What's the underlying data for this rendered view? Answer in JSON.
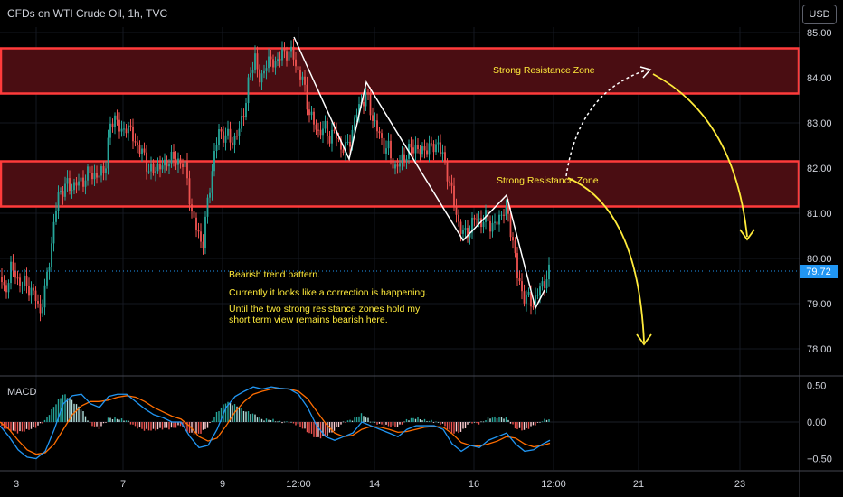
{
  "header": {
    "title": "CFDs on WTI Crude Oil, 1h, TVC",
    "currency_button": "USD"
  },
  "macd_label": "MACD",
  "annotations": {
    "zone_upper": "Strong Resistance Zone",
    "zone_lower": "Strong Resistance Zone",
    "note_line1": "Bearish trend pattern.",
    "note_line2": "Currently it looks like a correction is happening.",
    "note_line3": "Until the two strong resistance zones hold my",
    "note_line4": "short term view remains bearish here."
  },
  "colors": {
    "up": "#26a69a",
    "down": "#ef5350",
    "zone_border": "#ff3b3b",
    "zone_fill": "#4a0d12",
    "annotation": "#ffeb3b",
    "macd_line": "#2196f3",
    "signal_line": "#ff6d00",
    "last_price": "#2196f3"
  },
  "chart_data": {
    "type": "candlestick",
    "title": "CFDs on WTI Crude Oil, 1h, TVC",
    "price_axis": {
      "range": [
        77.5,
        85.2
      ],
      "ticks": [
        "85.00",
        "84.00",
        "83.00",
        "82.00",
        "81.00",
        "80.00",
        "79.00",
        "78.00"
      ]
    },
    "last_price": "79.72",
    "time_axis": {
      "labels": [
        "3",
        "7",
        "9",
        "12:00",
        "14",
        "16",
        "12:00",
        "21",
        "23"
      ]
    },
    "resistance_zones": [
      {
        "low": 83.65,
        "high": 84.65,
        "label": "Strong Resistance Zone"
      },
      {
        "low": 81.15,
        "high": 82.15,
        "label": "Strong Resistance Zone"
      }
    ],
    "price_path": [
      [
        0,
        79.6
      ],
      [
        5,
        79.2
      ],
      [
        12,
        79.8
      ],
      [
        20,
        79.5
      ],
      [
        30,
        79.4
      ],
      [
        38,
        79.2
      ],
      [
        44,
        78.8
      ],
      [
        50,
        79.3
      ],
      [
        56,
        80.2
      ],
      [
        64,
        81.4
      ],
      [
        72,
        81.6
      ],
      [
        80,
        81.6
      ],
      [
        90,
        81.7
      ],
      [
        100,
        81.9
      ],
      [
        108,
        81.8
      ],
      [
        116,
        82.0
      ],
      [
        122,
        82.9
      ],
      [
        128,
        83.2
      ],
      [
        134,
        82.7
      ],
      [
        140,
        83.0
      ],
      [
        146,
        82.7
      ],
      [
        152,
        82.5
      ],
      [
        158,
        82.3
      ],
      [
        164,
        82.0
      ],
      [
        170,
        81.9
      ],
      [
        176,
        82.1
      ],
      [
        182,
        82.0
      ],
      [
        188,
        82.3
      ],
      [
        194,
        82.1
      ],
      [
        200,
        82.2
      ],
      [
        206,
        81.9
      ],
      [
        212,
        81.0
      ],
      [
        218,
        80.6
      ],
      [
        224,
        80.3
      ],
      [
        230,
        81.3
      ],
      [
        236,
        82.2
      ],
      [
        242,
        82.8
      ],
      [
        250,
        82.7
      ],
      [
        258,
        82.6
      ],
      [
        264,
        82.8
      ],
      [
        270,
        83.3
      ],
      [
        276,
        84.0
      ],
      [
        282,
        84.5
      ],
      [
        288,
        83.8
      ],
      [
        294,
        84.4
      ],
      [
        300,
        84.3
      ],
      [
        306,
        84.4
      ],
      [
        312,
        84.5
      ],
      [
        318,
        84.6
      ],
      [
        324,
        84.5
      ],
      [
        328,
        84.2
      ],
      [
        334,
        84.0
      ],
      [
        340,
        83.4
      ],
      [
        346,
        83.0
      ],
      [
        352,
        82.8
      ],
      [
        358,
        82.9
      ],
      [
        364,
        82.7
      ],
      [
        370,
        82.8
      ],
      [
        376,
        82.5
      ],
      [
        382,
        82.4
      ],
      [
        388,
        82.7
      ],
      [
        394,
        83.2
      ],
      [
        400,
        83.5
      ],
      [
        406,
        83.6
      ],
      [
        412,
        83.1
      ],
      [
        418,
        82.8
      ],
      [
        424,
        82.5
      ],
      [
        430,
        82.4
      ],
      [
        436,
        82.0
      ],
      [
        442,
        82.1
      ],
      [
        448,
        82.3
      ],
      [
        454,
        82.4
      ],
      [
        460,
        82.5
      ],
      [
        466,
        82.3
      ],
      [
        472,
        82.5
      ],
      [
        478,
        82.4
      ],
      [
        484,
        82.6
      ],
      [
        490,
        82.2
      ],
      [
        496,
        81.8
      ],
      [
        502,
        81.2
      ],
      [
        508,
        80.7
      ],
      [
        514,
        80.5
      ],
      [
        520,
        80.7
      ],
      [
        526,
        80.9
      ],
      [
        532,
        80.8
      ],
      [
        538,
        80.9
      ],
      [
        544,
        80.7
      ],
      [
        550,
        80.8
      ],
      [
        556,
        81.1
      ],
      [
        562,
        80.9
      ],
      [
        568,
        80.3
      ],
      [
        572,
        79.6
      ],
      [
        578,
        79.2
      ],
      [
        584,
        79.1
      ],
      [
        590,
        79.0
      ],
      [
        596,
        79.3
      ],
      [
        602,
        79.5
      ],
      [
        608,
        79.7
      ]
    ],
    "macd_axis": {
      "range": [
        -0.62,
        0.62
      ],
      "ticks": [
        "0.50",
        "0.00",
        "−0.50"
      ]
    },
    "macd_line": [
      [
        0,
        -0.05
      ],
      [
        10,
        -0.2
      ],
      [
        20,
        -0.38
      ],
      [
        30,
        -0.48
      ],
      [
        40,
        -0.5
      ],
      [
        50,
        -0.4
      ],
      [
        60,
        -0.1
      ],
      [
        70,
        0.25
      ],
      [
        80,
        0.36
      ],
      [
        90,
        0.38
      ],
      [
        100,
        0.25
      ],
      [
        110,
        0.2
      ],
      [
        120,
        0.35
      ],
      [
        130,
        0.38
      ],
      [
        140,
        0.38
      ],
      [
        150,
        0.28
      ],
      [
        160,
        0.18
      ],
      [
        170,
        0.1
      ],
      [
        180,
        0.06
      ],
      [
        190,
        0.0
      ],
      [
        200,
        0.0
      ],
      [
        210,
        -0.2
      ],
      [
        220,
        -0.35
      ],
      [
        230,
        -0.32
      ],
      [
        240,
        -0.1
      ],
      [
        250,
        0.2
      ],
      [
        260,
        0.35
      ],
      [
        270,
        0.42
      ],
      [
        280,
        0.48
      ],
      [
        290,
        0.45
      ],
      [
        300,
        0.48
      ],
      [
        310,
        0.46
      ],
      [
        320,
        0.45
      ],
      [
        330,
        0.38
      ],
      [
        340,
        0.2
      ],
      [
        350,
        -0.05
      ],
      [
        360,
        -0.2
      ],
      [
        370,
        -0.25
      ],
      [
        380,
        -0.2
      ],
      [
        390,
        -0.15
      ],
      [
        400,
        0.0
      ],
      [
        410,
        -0.05
      ],
      [
        420,
        -0.1
      ],
      [
        430,
        -0.15
      ],
      [
        440,
        -0.2
      ],
      [
        450,
        -0.1
      ],
      [
        460,
        -0.05
      ],
      [
        470,
        -0.05
      ],
      [
        480,
        -0.05
      ],
      [
        490,
        -0.1
      ],
      [
        500,
        -0.3
      ],
      [
        510,
        -0.4
      ],
      [
        520,
        -0.32
      ],
      [
        530,
        -0.35
      ],
      [
        540,
        -0.25
      ],
      [
        550,
        -0.2
      ],
      [
        560,
        -0.15
      ],
      [
        570,
        -0.3
      ],
      [
        580,
        -0.4
      ],
      [
        590,
        -0.38
      ],
      [
        600,
        -0.3
      ],
      [
        608,
        -0.25
      ]
    ],
    "signal_line": [
      [
        0,
        0.0
      ],
      [
        10,
        -0.1
      ],
      [
        20,
        -0.25
      ],
      [
        30,
        -0.38
      ],
      [
        40,
        -0.44
      ],
      [
        50,
        -0.42
      ],
      [
        60,
        -0.3
      ],
      [
        70,
        -0.1
      ],
      [
        80,
        0.1
      ],
      [
        90,
        0.22
      ],
      [
        100,
        0.28
      ],
      [
        110,
        0.28
      ],
      [
        120,
        0.3
      ],
      [
        130,
        0.34
      ],
      [
        140,
        0.36
      ],
      [
        150,
        0.34
      ],
      [
        160,
        0.28
      ],
      [
        170,
        0.2
      ],
      [
        180,
        0.14
      ],
      [
        190,
        0.08
      ],
      [
        200,
        0.04
      ],
      [
        210,
        -0.06
      ],
      [
        220,
        -0.2
      ],
      [
        230,
        -0.26
      ],
      [
        240,
        -0.22
      ],
      [
        250,
        -0.05
      ],
      [
        260,
        0.14
      ],
      [
        270,
        0.28
      ],
      [
        280,
        0.38
      ],
      [
        290,
        0.42
      ],
      [
        300,
        0.45
      ],
      [
        310,
        0.46
      ],
      [
        320,
        0.45
      ],
      [
        330,
        0.42
      ],
      [
        340,
        0.32
      ],
      [
        350,
        0.15
      ],
      [
        360,
        -0.02
      ],
      [
        370,
        -0.15
      ],
      [
        380,
        -0.2
      ],
      [
        390,
        -0.18
      ],
      [
        400,
        -0.1
      ],
      [
        410,
        -0.06
      ],
      [
        420,
        -0.07
      ],
      [
        430,
        -0.1
      ],
      [
        440,
        -0.14
      ],
      [
        450,
        -0.13
      ],
      [
        460,
        -0.1
      ],
      [
        470,
        -0.07
      ],
      [
        480,
        -0.06
      ],
      [
        490,
        -0.07
      ],
      [
        500,
        -0.16
      ],
      [
        510,
        -0.28
      ],
      [
        520,
        -0.32
      ],
      [
        530,
        -0.33
      ],
      [
        540,
        -0.3
      ],
      [
        550,
        -0.26
      ],
      [
        560,
        -0.2
      ],
      [
        570,
        -0.22
      ],
      [
        580,
        -0.3
      ],
      [
        590,
        -0.34
      ],
      [
        600,
        -0.32
      ],
      [
        608,
        -0.29
      ]
    ]
  }
}
